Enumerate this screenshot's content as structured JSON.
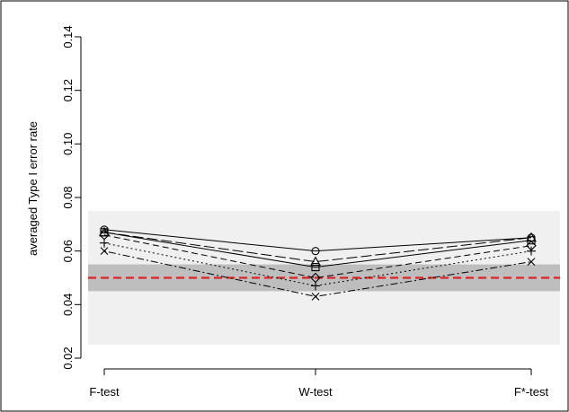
{
  "chart_data": {
    "type": "line",
    "title": "",
    "xlabel": "",
    "ylabel": "averaged Type I error rate",
    "categories": [
      "F-test",
      "W-test",
      "F*-test"
    ],
    "ylim": [
      0.02,
      0.14
    ],
    "yticks": [
      0.02,
      0.04,
      0.06,
      0.08,
      0.1,
      0.12,
      0.14
    ],
    "ytick_labels": [
      "0.02",
      "0.04",
      "0.06",
      "0.08",
      "0.10",
      "0.12",
      "0.14"
    ],
    "grid": false,
    "reference_line": {
      "y": 0.05,
      "color": "#d62728",
      "style": "dashed"
    },
    "bands": [
      {
        "y0": 0.025,
        "y1": 0.075,
        "color": "#f0f0f0"
      },
      {
        "y0": 0.045,
        "y1": 0.055,
        "color": "#bebebe"
      }
    ],
    "series": [
      {
        "marker": "circle",
        "line": "solid",
        "values": [
          0.068,
          0.06,
          0.065
        ]
      },
      {
        "marker": "triangle",
        "line": "longdash",
        "values": [
          0.067,
          0.056,
          0.065
        ]
      },
      {
        "marker": "square",
        "line": "solid",
        "values": [
          0.067,
          0.054,
          0.064
        ]
      },
      {
        "marker": "diamond",
        "line": "dashed",
        "values": [
          0.066,
          0.05,
          0.062
        ]
      },
      {
        "marker": "plus",
        "line": "dotted",
        "values": [
          0.063,
          0.047,
          0.06
        ]
      },
      {
        "marker": "cross",
        "line": "dotdash",
        "values": [
          0.06,
          0.043,
          0.056
        ]
      }
    ]
  }
}
